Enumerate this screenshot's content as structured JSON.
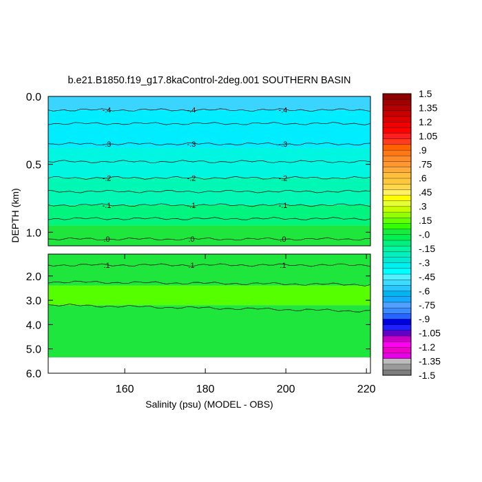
{
  "chart_data": {
    "type": "contour",
    "title": "b.e21.B1850.f19_g17.8kaControl-2deg.001 SOUTHERN BASIN",
    "xlabel": "Salinity (psu) (MODEL - OBS)",
    "ylabel": "DEPTH (km)",
    "x_range": [
      141,
      221
    ],
    "x_ticks": [
      160,
      180,
      200,
      220
    ],
    "upper_panel": {
      "depth_range_km": [
        0.0,
        1.1
      ],
      "y_ticks": [
        {
          "value": 0.0,
          "label": "0.0"
        },
        {
          "value": 0.5,
          "label": "0.5"
        },
        {
          "value": 1.0,
          "label": "1.0"
        }
      ],
      "bands": [
        {
          "from": 0.0,
          "to": 0.1,
          "color": "#3ad4ff"
        },
        {
          "from": 0.1,
          "to": 0.38,
          "color": "#00ecff"
        },
        {
          "from": 0.38,
          "to": 0.6,
          "color": "#00f6e0"
        },
        {
          "from": 0.6,
          "to": 0.8,
          "color": "#00f8b4"
        },
        {
          "from": 0.8,
          "to": 0.95,
          "color": "#00f47e"
        },
        {
          "from": 0.95,
          "to": 1.1,
          "color": "#1ee63c"
        }
      ],
      "contours": [
        {
          "depth": 0.1,
          "label": "-.4"
        },
        {
          "depth": 0.2,
          "label": ""
        },
        {
          "depth": 0.35,
          "label": "-.3"
        },
        {
          "depth": 0.48,
          "label": ""
        },
        {
          "depth": 0.6,
          "label": "-.2"
        },
        {
          "depth": 0.7,
          "label": ""
        },
        {
          "depth": 0.8,
          "label": "-.1"
        },
        {
          "depth": 0.9,
          "label": ""
        },
        {
          "depth": 1.05,
          "label": ".0"
        }
      ]
    },
    "lower_panel": {
      "depth_range_km": [
        1.1,
        6.0
      ],
      "y_ticks": [
        {
          "value": 2.0,
          "label": "2.0"
        },
        {
          "value": 3.0,
          "label": "3.0"
        },
        {
          "value": 4.0,
          "label": "4.0"
        },
        {
          "value": 5.0,
          "label": "5.0"
        },
        {
          "value": 6.0,
          "label": "6.0"
        }
      ],
      "no_data_below_km": 5.35,
      "bands": [
        {
          "from": 1.1,
          "to": 2.4,
          "color": "#1ee63c"
        },
        {
          "from": 2.4,
          "to": 3.2,
          "color": "#55ff00"
        },
        {
          "from": 3.2,
          "to": 5.35,
          "color": "#1ee63c"
        }
      ],
      "contours": [
        {
          "depth": 1.55,
          "label": ".1"
        },
        {
          "depth": 2.3,
          "label": ""
        },
        {
          "depth": 3.25,
          "label": ""
        }
      ]
    },
    "colorbar": {
      "min": -1.5,
      "max": 1.5,
      "step": 0.075,
      "labels": [
        "1.5",
        "1.35",
        "1.2",
        "1.05",
        ".9",
        ".75",
        ".6",
        ".45",
        ".3",
        ".15",
        "-.0",
        "-.15",
        "-.3",
        "-.45",
        "-.6",
        "-.75",
        "-.9",
        "-1.05",
        "-1.2",
        "-1.35",
        "-1.5"
      ],
      "colors": [
        "#7d7d7d",
        "#9a9a9a",
        "#bcbcbc",
        "#e600e6",
        "#f000c8",
        "#ff00f0",
        "#c800c8",
        "#6400c8",
        "#2020ff",
        "#0000e0",
        "#2864ff",
        "#3c8cff",
        "#50a0ff",
        "#14aaff",
        "#00b4f0",
        "#28c8ff",
        "#3cdcff",
        "#50f0ff",
        "#00ffff",
        "#00f0f0",
        "#00ebd2",
        "#00f0be",
        "#00f5a0",
        "#00f07d",
        "#00f050",
        "#14eb3c",
        "#32ff00",
        "#64ff00",
        "#96ff00",
        "#c8ff00",
        "#e6ff32",
        "#ffff00",
        "#fff064",
        "#ffd74b",
        "#ffc83c",
        "#ffbe3c",
        "#ffaa3c",
        "#ff9632",
        "#ff8c28",
        "#ff7814",
        "#ff6400",
        "#ff3c1e",
        "#ff1e1e",
        "#ff0000",
        "#f00000",
        "#dc0000",
        "#c80000",
        "#b40000",
        "#a00000",
        "#8c0000"
      ]
    }
  }
}
